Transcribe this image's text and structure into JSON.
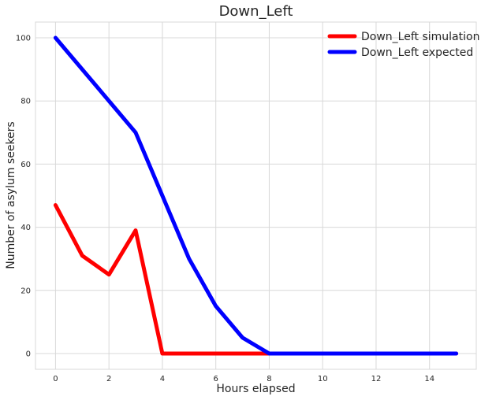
{
  "chart_data": {
    "type": "line",
    "title": "Down_Left",
    "xlabel": "Hours elapsed",
    "ylabel": "Number of asylum seekers",
    "xlim": [
      -0.75,
      15.75
    ],
    "ylim": [
      -5,
      105
    ],
    "xticks": [
      0,
      2,
      4,
      6,
      8,
      10,
      12,
      14
    ],
    "yticks": [
      0,
      20,
      40,
      60,
      80,
      100
    ],
    "grid": true,
    "legend_position": "top-right",
    "series": [
      {
        "name": "Down_Left simulation",
        "color": "#ff0000",
        "x": [
          0,
          1,
          2,
          3,
          4,
          5,
          6,
          7,
          8,
          9,
          10,
          11,
          12,
          13,
          14,
          15
        ],
        "y": [
          47,
          31,
          25,
          39,
          0,
          0,
          0,
          0,
          0,
          0,
          0,
          0,
          0,
          0,
          0,
          0
        ]
      },
      {
        "name": "Down_Left expected",
        "color": "#0000ff",
        "x": [
          0,
          1,
          2,
          3,
          4,
          5,
          6,
          7,
          8,
          9,
          10,
          11,
          12,
          13,
          14,
          15
        ],
        "y": [
          100,
          90,
          80,
          70,
          50,
          30,
          15,
          5,
          0,
          0,
          0,
          0,
          0,
          0,
          0,
          0
        ]
      }
    ]
  }
}
